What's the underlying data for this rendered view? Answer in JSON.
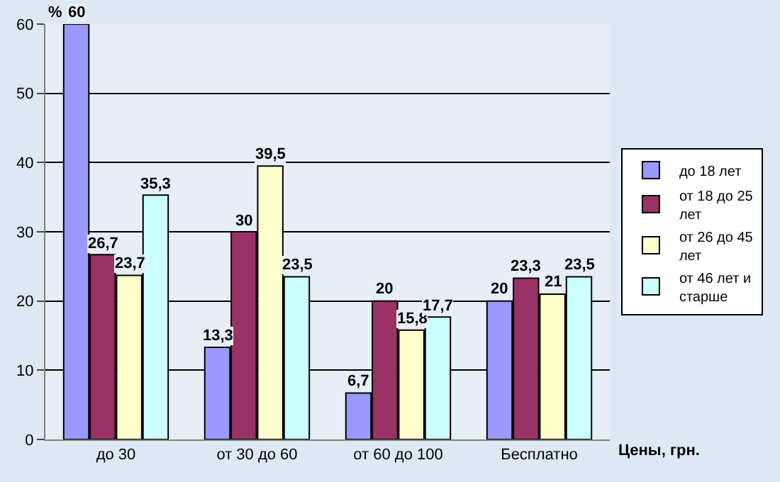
{
  "chart_data": {
    "type": "bar",
    "ylabel": "%",
    "xlabel": "Цены, грн.",
    "categories": [
      "до 30",
      "от 30 до 60",
      "от 60 до 100",
      "Бесплатно"
    ],
    "series": [
      {
        "name": "до 18 лет",
        "color": "#9999ff",
        "values": [
          60,
          13.3,
          6.7,
          20
        ],
        "value_labels": [
          "60",
          "13,3",
          "6,7",
          "20"
        ]
      },
      {
        "name": "от 18 до 25 лет",
        "color": "#993366",
        "values": [
          26.7,
          30,
          20,
          23.3
        ],
        "value_labels": [
          "26,7",
          "30",
          "20",
          "23,3"
        ]
      },
      {
        "name": "от 26 до 45 лет",
        "color": "#ffffcc",
        "values": [
          23.7,
          39.5,
          15.8,
          21
        ],
        "value_labels": [
          "23,7",
          "39,5",
          "15,8",
          "21"
        ]
      },
      {
        "name": "от 46 лет и старше",
        "color": "#ccffff",
        "values": [
          35.3,
          23.5,
          17.7,
          23.5
        ],
        "value_labels": [
          "35,3",
          "23,5",
          "17,7",
          "23,5"
        ]
      }
    ],
    "ylim": [
      0,
      60
    ],
    "yticks": [
      0,
      10,
      20,
      30,
      40,
      50,
      60
    ],
    "grid": "y",
    "legend": "right"
  }
}
